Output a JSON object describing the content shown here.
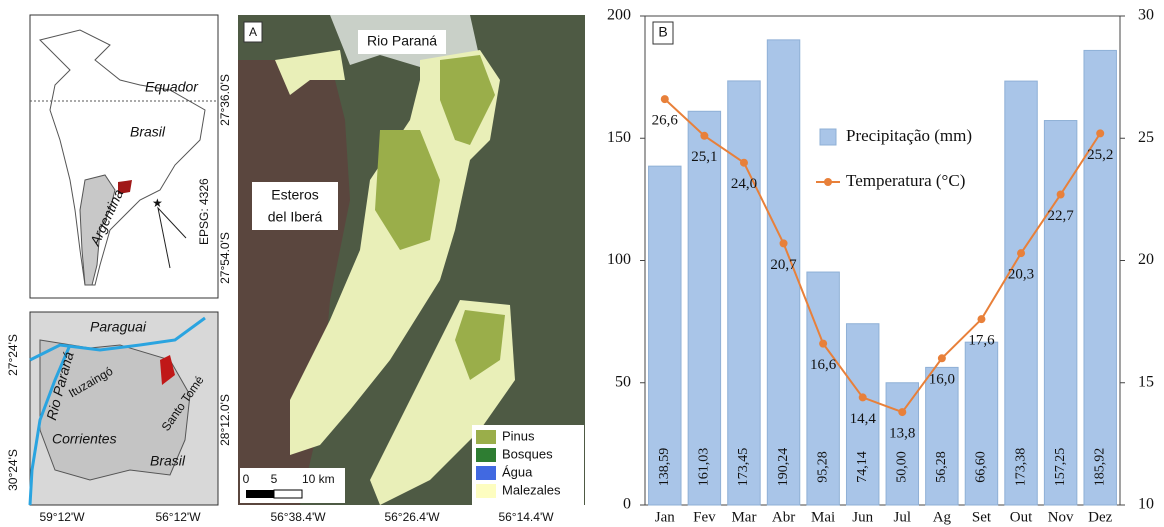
{
  "chart_data": {
    "type": "bar",
    "panel_label": "B",
    "categories": [
      "Jan",
      "Fev",
      "Mar",
      "Abr",
      "Mai",
      "Jun",
      "Jul",
      "Ag",
      "Set",
      "Out",
      "Nov",
      "Dez"
    ],
    "series": [
      {
        "name": "Precipitação (mm)",
        "type": "bar",
        "color": "#a9c5e8",
        "axis": "y",
        "values": [
          138.59,
          161.03,
          173.45,
          190.24,
          95.28,
          74.14,
          50.0,
          56.28,
          66.6,
          173.38,
          157.25,
          185.92
        ],
        "value_labels": [
          "138,59",
          "161,03",
          "173,45",
          "190,24",
          "95,28",
          "74,14",
          "50,00",
          "56,28",
          "66,60",
          "173,38",
          "157,25",
          "185,92"
        ]
      },
      {
        "name": "Temperatura (°C)",
        "type": "line",
        "color": "#e8803a",
        "axis": "y2",
        "values": [
          26.6,
          25.1,
          24.0,
          20.7,
          16.6,
          14.4,
          13.8,
          16.0,
          17.6,
          20.3,
          22.7,
          25.2
        ],
        "value_labels": [
          "26,6",
          "25,1",
          "24,0",
          "20,7",
          "16,6",
          "14,4",
          "13,8",
          "16,0",
          "17,6",
          "20,3",
          "22,7",
          "25,2"
        ]
      }
    ],
    "ylim": [
      0,
      200
    ],
    "yticks": [
      0,
      50,
      100,
      150,
      200
    ],
    "y2lim": [
      10,
      30
    ],
    "y2ticks": [
      10,
      15,
      20,
      25,
      30
    ],
    "grid": false
  },
  "maps": {
    "overview": {
      "labels": [
        "Equador",
        "Brasil",
        "Argentina",
        "EPSG: 4326"
      ]
    },
    "region": {
      "labels": [
        "Paraguai",
        "Rio Paraná",
        "Ituzaingó",
        "Corrientes",
        "Santo Tomé",
        "Brasil"
      ],
      "lat": [
        "27°24'S",
        "30°24'S"
      ],
      "lon": [
        "59°12'W",
        "56°12'W"
      ]
    },
    "study_area": {
      "panel_label": "A",
      "labels": [
        "Rio Paraná",
        "Esteros",
        "del Iberá"
      ],
      "lat": [
        "27°36.0'S",
        "27°54.0'S",
        "28°12.0'S"
      ],
      "lon": [
        "56°38.4'W",
        "56°26.4'W",
        "56°14.4'W"
      ],
      "scale": [
        "0",
        "5",
        "10 km"
      ],
      "legend": [
        "Pinus",
        "Bosques",
        "Água",
        "Malezales"
      ]
    }
  }
}
